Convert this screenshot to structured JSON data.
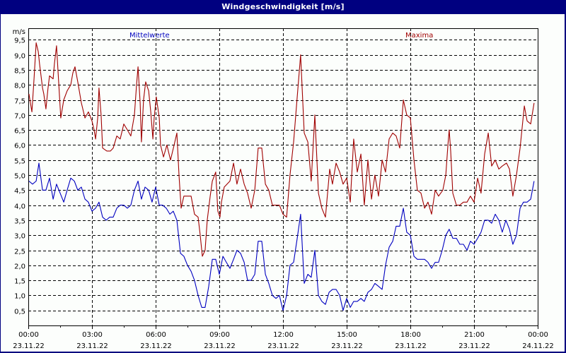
{
  "window": {
    "title": "Windgeschwindigkeit [m/s]"
  },
  "legend": {
    "mean": "Mittelwerte",
    "max": "Maxima"
  },
  "colors": {
    "titlebar": "#000080",
    "mean": "#0000c0",
    "max": "#a00000",
    "background": "#fcfefc",
    "grid": "#000000"
  },
  "chart_data": {
    "type": "line",
    "title": "Windgeschwindigkeit [m/s]",
    "xlabel": "",
    "ylabel": "m/s",
    "ylim": [
      0,
      9.5
    ],
    "xlim_hours": [
      0,
      24
    ],
    "yticks": [
      "0,5",
      "1,0",
      "1,5",
      "2,0",
      "2,5",
      "3,0",
      "3,5",
      "4,0",
      "4,5",
      "5,0",
      "5,5",
      "6,0",
      "6,5",
      "7,0",
      "7,5",
      "8,0",
      "8,5",
      "9,0",
      "9,5"
    ],
    "xticks": [
      {
        "time": "00:00",
        "date": "23.11.22"
      },
      {
        "time": "03:00",
        "date": "23.11.22"
      },
      {
        "time": "06:00",
        "date": "23.11.22"
      },
      {
        "time": "09:00",
        "date": "23.11.22"
      },
      {
        "time": "12:00",
        "date": "23.11.22"
      },
      {
        "time": "15:00",
        "date": "23.11.22"
      },
      {
        "time": "18:00",
        "date": "23.11.22"
      },
      {
        "time": "21:00",
        "date": "23.11.22"
      },
      {
        "time": "00:00",
        "date": "24.11.22"
      }
    ],
    "grid": true,
    "legend_position": "top",
    "series": [
      {
        "name": "Mittelwerte",
        "color": "#0000c0",
        "points": [
          [
            0.03,
            4.8
          ],
          [
            0.2,
            4.7
          ],
          [
            0.37,
            4.8
          ],
          [
            0.5,
            5.4
          ],
          [
            0.67,
            4.5
          ],
          [
            0.83,
            4.5
          ],
          [
            1.0,
            4.9
          ],
          [
            1.17,
            4.2
          ],
          [
            1.33,
            4.7
          ],
          [
            1.5,
            4.4
          ],
          [
            1.67,
            4.1
          ],
          [
            1.83,
            4.5
          ],
          [
            2.0,
            4.9
          ],
          [
            2.17,
            4.8
          ],
          [
            2.33,
            4.5
          ],
          [
            2.5,
            4.6
          ],
          [
            2.67,
            4.2
          ],
          [
            2.83,
            4.1
          ],
          [
            3.0,
            3.8
          ],
          [
            3.17,
            3.9
          ],
          [
            3.33,
            4.1
          ],
          [
            3.5,
            3.6
          ],
          [
            3.67,
            3.5
          ],
          [
            3.83,
            3.6
          ],
          [
            4.0,
            3.6
          ],
          [
            4.17,
            3.9
          ],
          [
            4.33,
            4.0
          ],
          [
            4.5,
            4.0
          ],
          [
            4.67,
            3.9
          ],
          [
            4.83,
            4.0
          ],
          [
            5.0,
            4.5
          ],
          [
            5.17,
            4.8
          ],
          [
            5.33,
            4.2
          ],
          [
            5.5,
            4.6
          ],
          [
            5.67,
            4.5
          ],
          [
            5.83,
            4.1
          ],
          [
            6.0,
            4.6
          ],
          [
            6.17,
            4.0
          ],
          [
            6.33,
            4.0
          ],
          [
            6.5,
            3.9
          ],
          [
            6.67,
            3.7
          ],
          [
            6.83,
            3.8
          ],
          [
            7.0,
            3.5
          ],
          [
            7.17,
            2.4
          ],
          [
            7.33,
            2.3
          ],
          [
            7.5,
            2.0
          ],
          [
            7.67,
            1.8
          ],
          [
            7.83,
            1.5
          ],
          [
            8.0,
            1.0
          ],
          [
            8.17,
            0.6
          ],
          [
            8.33,
            0.6
          ],
          [
            8.5,
            1.3
          ],
          [
            8.67,
            2.2
          ],
          [
            8.83,
            2.2
          ],
          [
            9.0,
            1.7
          ],
          [
            9.17,
            2.3
          ],
          [
            9.33,
            2.1
          ],
          [
            9.5,
            1.9
          ],
          [
            9.67,
            2.2
          ],
          [
            9.83,
            2.5
          ],
          [
            10.0,
            2.4
          ],
          [
            10.17,
            2.1
          ],
          [
            10.33,
            1.5
          ],
          [
            10.5,
            1.5
          ],
          [
            10.67,
            1.7
          ],
          [
            10.83,
            2.8
          ],
          [
            11.0,
            2.8
          ],
          [
            11.17,
            1.7
          ],
          [
            11.33,
            1.4
          ],
          [
            11.5,
            1.0
          ],
          [
            11.67,
            0.9
          ],
          [
            11.83,
            1.0
          ],
          [
            12.0,
            0.5
          ],
          [
            12.17,
            1.0
          ],
          [
            12.33,
            2.0
          ],
          [
            12.5,
            2.1
          ],
          [
            12.67,
            2.9
          ],
          [
            12.83,
            3.7
          ],
          [
            13.0,
            1.4
          ],
          [
            13.17,
            1.7
          ],
          [
            13.33,
            1.6
          ],
          [
            13.5,
            2.5
          ],
          [
            13.67,
            1.0
          ],
          [
            13.83,
            0.8
          ],
          [
            14.0,
            0.7
          ],
          [
            14.17,
            1.1
          ],
          [
            14.33,
            1.2
          ],
          [
            14.5,
            1.2
          ],
          [
            14.67,
            1.0
          ],
          [
            14.83,
            0.5
          ],
          [
            15.0,
            0.9
          ],
          [
            15.17,
            0.6
          ],
          [
            15.33,
            0.8
          ],
          [
            15.5,
            0.8
          ],
          [
            15.67,
            0.9
          ],
          [
            15.83,
            0.8
          ],
          [
            16.0,
            1.1
          ],
          [
            16.17,
            1.2
          ],
          [
            16.33,
            1.4
          ],
          [
            16.5,
            1.3
          ],
          [
            16.67,
            1.2
          ],
          [
            16.83,
            2.0
          ],
          [
            17.0,
            2.6
          ],
          [
            17.17,
            2.8
          ],
          [
            17.33,
            3.3
          ],
          [
            17.5,
            3.3
          ],
          [
            17.67,
            3.9
          ],
          [
            17.83,
            3.1
          ],
          [
            18.0,
            3.0
          ],
          [
            18.17,
            2.3
          ],
          [
            18.33,
            2.2
          ],
          [
            18.67,
            2.2
          ],
          [
            18.83,
            2.1
          ],
          [
            19.0,
            1.9
          ],
          [
            19.17,
            2.1
          ],
          [
            19.33,
            2.1
          ],
          [
            19.5,
            2.5
          ],
          [
            19.67,
            3.0
          ],
          [
            19.83,
            3.2
          ],
          [
            20.0,
            2.9
          ],
          [
            20.17,
            2.9
          ],
          [
            20.33,
            2.7
          ],
          [
            20.5,
            2.7
          ],
          [
            20.67,
            2.5
          ],
          [
            20.83,
            2.8
          ],
          [
            21.0,
            2.7
          ],
          [
            21.17,
            2.9
          ],
          [
            21.33,
            3.1
          ],
          [
            21.5,
            3.5
          ],
          [
            21.67,
            3.5
          ],
          [
            21.83,
            3.4
          ],
          [
            22.0,
            3.7
          ],
          [
            22.17,
            3.5
          ],
          [
            22.33,
            3.1
          ],
          [
            22.5,
            3.5
          ],
          [
            22.67,
            3.2
          ],
          [
            22.83,
            2.7
          ],
          [
            23.0,
            3.0
          ],
          [
            23.17,
            3.9
          ],
          [
            23.33,
            4.1
          ],
          [
            23.5,
            4.1
          ],
          [
            23.67,
            4.2
          ],
          [
            23.83,
            4.8
          ]
        ]
      },
      {
        "name": "Maxima",
        "color": "#a00000",
        "points": [
          [
            0.03,
            7.7
          ],
          [
            0.1,
            7.4
          ],
          [
            0.17,
            7.1
          ],
          [
            0.27,
            8.2
          ],
          [
            0.37,
            9.4
          ],
          [
            0.47,
            9.1
          ],
          [
            0.53,
            8.7
          ],
          [
            0.67,
            7.9
          ],
          [
            0.73,
            7.7
          ],
          [
            0.83,
            7.2
          ],
          [
            0.93,
            7.9
          ],
          [
            1.0,
            8.3
          ],
          [
            1.17,
            8.2
          ],
          [
            1.23,
            8.7
          ],
          [
            1.33,
            9.3
          ],
          [
            1.43,
            8.1
          ],
          [
            1.53,
            6.9
          ],
          [
            1.67,
            7.5
          ],
          [
            1.83,
            7.8
          ],
          [
            2.0,
            8.0
          ],
          [
            2.1,
            8.4
          ],
          [
            2.2,
            8.6
          ],
          [
            2.33,
            8.1
          ],
          [
            2.5,
            7.4
          ],
          [
            2.67,
            6.9
          ],
          [
            2.83,
            7.1
          ],
          [
            3.0,
            6.8
          ],
          [
            3.1,
            6.5
          ],
          [
            3.17,
            6.2
          ],
          [
            3.27,
            6.9
          ],
          [
            3.33,
            7.9
          ],
          [
            3.43,
            7.0
          ],
          [
            3.5,
            5.9
          ],
          [
            3.7,
            5.8
          ],
          [
            3.87,
            5.8
          ],
          [
            4.0,
            5.9
          ],
          [
            4.17,
            6.3
          ],
          [
            4.33,
            6.2
          ],
          [
            4.5,
            6.7
          ],
          [
            4.67,
            6.5
          ],
          [
            4.83,
            6.3
          ],
          [
            5.0,
            7.0
          ],
          [
            5.1,
            8.0
          ],
          [
            5.17,
            8.6
          ],
          [
            5.27,
            7.4
          ],
          [
            5.33,
            6.1
          ],
          [
            5.43,
            7.5
          ],
          [
            5.53,
            8.1
          ],
          [
            5.67,
            7.8
          ],
          [
            5.77,
            7.1
          ],
          [
            5.87,
            6.2
          ],
          [
            5.93,
            6.9
          ],
          [
            6.03,
            7.6
          ],
          [
            6.17,
            6.9
          ],
          [
            6.23,
            6.0
          ],
          [
            6.37,
            5.6
          ],
          [
            6.53,
            6.0
          ],
          [
            6.7,
            5.5
          ],
          [
            6.87,
            6.0
          ],
          [
            7.0,
            6.4
          ],
          [
            7.1,
            5.0
          ],
          [
            7.2,
            3.9
          ],
          [
            7.33,
            4.3
          ],
          [
            7.67,
            4.3
          ],
          [
            7.83,
            3.7
          ],
          [
            8.0,
            3.6
          ],
          [
            8.1,
            3.0
          ],
          [
            8.2,
            2.3
          ],
          [
            8.33,
            2.5
          ],
          [
            8.43,
            3.5
          ],
          [
            8.57,
            4.3
          ],
          [
            8.67,
            4.8
          ],
          [
            8.83,
            5.1
          ],
          [
            8.93,
            3.8
          ],
          [
            9.03,
            3.6
          ],
          [
            9.1,
            4.1
          ],
          [
            9.23,
            4.6
          ],
          [
            9.5,
            4.8
          ],
          [
            9.67,
            5.4
          ],
          [
            9.83,
            4.7
          ],
          [
            10.0,
            5.2
          ],
          [
            10.17,
            4.7
          ],
          [
            10.33,
            4.4
          ],
          [
            10.5,
            3.9
          ],
          [
            10.67,
            4.5
          ],
          [
            10.83,
            5.9
          ],
          [
            11.0,
            5.9
          ],
          [
            11.17,
            4.7
          ],
          [
            11.33,
            4.5
          ],
          [
            11.5,
            4.0
          ],
          [
            11.83,
            4.0
          ],
          [
            12.0,
            3.7
          ],
          [
            12.17,
            3.6
          ],
          [
            12.33,
            5.0
          ],
          [
            12.5,
            6.1
          ],
          [
            12.67,
            7.6
          ],
          [
            12.83,
            9.0
          ],
          [
            13.0,
            6.4
          ],
          [
            13.17,
            6.1
          ],
          [
            13.33,
            4.8
          ],
          [
            13.5,
            7.0
          ],
          [
            13.67,
            4.4
          ],
          [
            13.83,
            3.9
          ],
          [
            14.0,
            3.6
          ],
          [
            14.1,
            4.4
          ],
          [
            14.2,
            5.2
          ],
          [
            14.33,
            4.7
          ],
          [
            14.5,
            5.4
          ],
          [
            14.67,
            5.1
          ],
          [
            14.83,
            4.7
          ],
          [
            15.0,
            4.9
          ],
          [
            15.17,
            4.1
          ],
          [
            15.33,
            6.2
          ],
          [
            15.5,
            5.1
          ],
          [
            15.67,
            5.7
          ],
          [
            15.83,
            4.0
          ],
          [
            16.0,
            5.5
          ],
          [
            16.17,
            4.2
          ],
          [
            16.33,
            5.0
          ],
          [
            16.5,
            4.3
          ],
          [
            16.67,
            5.5
          ],
          [
            16.83,
            5.1
          ],
          [
            17.0,
            6.2
          ],
          [
            17.17,
            6.4
          ],
          [
            17.33,
            6.3
          ],
          [
            17.5,
            5.9
          ],
          [
            17.67,
            7.5
          ],
          [
            17.83,
            7.0
          ],
          [
            18.0,
            6.9
          ],
          [
            18.17,
            5.5
          ],
          [
            18.33,
            4.5
          ],
          [
            18.5,
            4.4
          ],
          [
            18.67,
            3.9
          ],
          [
            18.83,
            4.1
          ],
          [
            19.0,
            3.7
          ],
          [
            19.17,
            4.5
          ],
          [
            19.33,
            4.3
          ],
          [
            19.53,
            4.5
          ],
          [
            19.67,
            5.0
          ],
          [
            19.77,
            6.0
          ],
          [
            19.83,
            6.5
          ],
          [
            19.9,
            5.8
          ],
          [
            20.0,
            4.4
          ],
          [
            20.17,
            4.0
          ],
          [
            20.33,
            4.0
          ],
          [
            20.5,
            4.1
          ],
          [
            20.67,
            4.1
          ],
          [
            20.83,
            4.3
          ],
          [
            21.0,
            4.1
          ],
          [
            21.17,
            4.9
          ],
          [
            21.33,
            4.4
          ],
          [
            21.5,
            5.7
          ],
          [
            21.67,
            6.4
          ],
          [
            21.83,
            5.3
          ],
          [
            22.0,
            5.5
          ],
          [
            22.17,
            5.2
          ],
          [
            22.33,
            5.3
          ],
          [
            22.53,
            5.4
          ],
          [
            22.67,
            5.2
          ],
          [
            22.83,
            4.3
          ],
          [
            23.0,
            5.0
          ],
          [
            23.17,
            5.9
          ],
          [
            23.37,
            7.3
          ],
          [
            23.5,
            6.8
          ],
          [
            23.67,
            6.7
          ],
          [
            23.83,
            7.4
          ]
        ]
      }
    ]
  }
}
